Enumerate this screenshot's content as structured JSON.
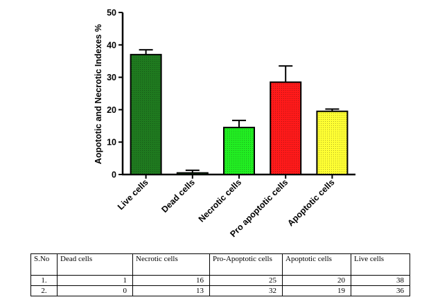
{
  "chart_data": {
    "type": "bar",
    "ylabel": "Aopototic and Necrotic Indexes %",
    "ylim": [
      0,
      50
    ],
    "yticks": [
      0,
      10,
      20,
      30,
      40,
      50
    ],
    "categories": [
      "Live cells",
      "Dead cells",
      "Necrotic cells",
      "Pro apoptotic cells",
      "Apoptotic cells"
    ],
    "values": [
      37,
      0.5,
      14.5,
      28.5,
      19.5
    ],
    "errors": [
      1.5,
      0.8,
      2.2,
      5.0,
      0.7
    ],
    "colors": [
      "#1f7a1f",
      "#1f7a1f",
      "#22ee22",
      "#ff1a1a",
      "#ffff33"
    ]
  },
  "table": {
    "headers": [
      "S.No",
      "Dead cells",
      "Necrotic cells",
      "Pro-Apoptotic cells",
      "Apoptotic cells",
      "Live cells"
    ],
    "rows": [
      [
        "1.",
        "1",
        "16",
        "25",
        "20",
        "38"
      ],
      [
        "2.",
        "0",
        "13",
        "32",
        "19",
        "36"
      ]
    ]
  }
}
